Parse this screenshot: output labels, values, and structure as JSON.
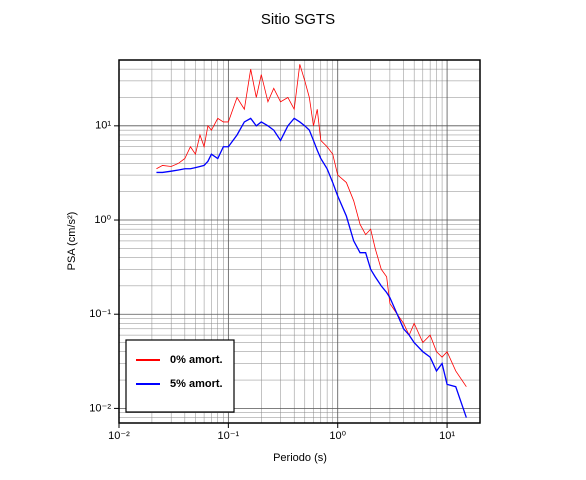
{
  "chart_data": {
    "type": "line",
    "title": "Sitio SGTS",
    "xlabel": "Periodo (s)",
    "ylabel": "PSA (cm/s²)",
    "xscale": "log",
    "yscale": "log",
    "grid": true,
    "legend": "lower left",
    "xlim": [
      0.01,
      20
    ],
    "ylim": [
      0.007,
      50
    ],
    "xticks": [
      {
        "value": 0.01,
        "label": "10⁻²"
      },
      {
        "value": 0.1,
        "label": "10⁻¹"
      },
      {
        "value": 1,
        "label": "10⁰"
      },
      {
        "value": 10,
        "label": "10¹"
      }
    ],
    "yticks": [
      {
        "value": 0.01,
        "label": "10⁻²"
      },
      {
        "value": 0.1,
        "label": "10⁻¹"
      },
      {
        "value": 1,
        "label": "10⁰"
      },
      {
        "value": 10,
        "label": "10¹"
      }
    ],
    "x": [
      0.022,
      0.025,
      0.03,
      0.035,
      0.04,
      0.045,
      0.05,
      0.055,
      0.06,
      0.065,
      0.07,
      0.08,
      0.09,
      0.1,
      0.12,
      0.14,
      0.16,
      0.18,
      0.2,
      0.23,
      0.26,
      0.3,
      0.35,
      0.4,
      0.45,
      0.5,
      0.55,
      0.6,
      0.65,
      0.7,
      0.8,
      0.9,
      1.0,
      1.2,
      1.4,
      1.6,
      1.8,
      2.0,
      2.2,
      2.5,
      2.8,
      3.0,
      3.5,
      4,
      4.5,
      5,
      6,
      7,
      8,
      9,
      10,
      12,
      15
    ],
    "series": [
      {
        "name": "0% amort.",
        "color": "#ff0000",
        "width": 0.8,
        "values": [
          3.5,
          3.8,
          3.7,
          4.0,
          4.5,
          6,
          5,
          8,
          6,
          10,
          9,
          12,
          11,
          11,
          20,
          15,
          40,
          20,
          35,
          18,
          25,
          18,
          20,
          15,
          45,
          30,
          20,
          10,
          15,
          7,
          6,
          5,
          3,
          2.5,
          1.6,
          0.9,
          0.7,
          0.8,
          0.5,
          0.3,
          0.25,
          0.13,
          0.1,
          0.08,
          0.06,
          0.08,
          0.05,
          0.06,
          0.04,
          0.035,
          0.04,
          0.025,
          0.017
        ]
      },
      {
        "name": "5% amort.",
        "color": "#0000ff",
        "width": 1.3,
        "values": [
          3.2,
          3.2,
          3.3,
          3.4,
          3.5,
          3.5,
          3.6,
          3.7,
          3.8,
          4.2,
          5,
          4.5,
          6,
          6,
          8,
          11,
          12,
          10,
          11,
          10,
          9,
          7,
          10,
          12,
          11,
          10,
          9,
          7,
          5.5,
          4.5,
          3.5,
          2.5,
          1.8,
          1.1,
          0.6,
          0.45,
          0.45,
          0.3,
          0.25,
          0.2,
          0.17,
          0.15,
          0.1,
          0.07,
          0.06,
          0.05,
          0.04,
          0.035,
          0.025,
          0.03,
          0.018,
          0.017,
          0.008
        ]
      }
    ]
  }
}
